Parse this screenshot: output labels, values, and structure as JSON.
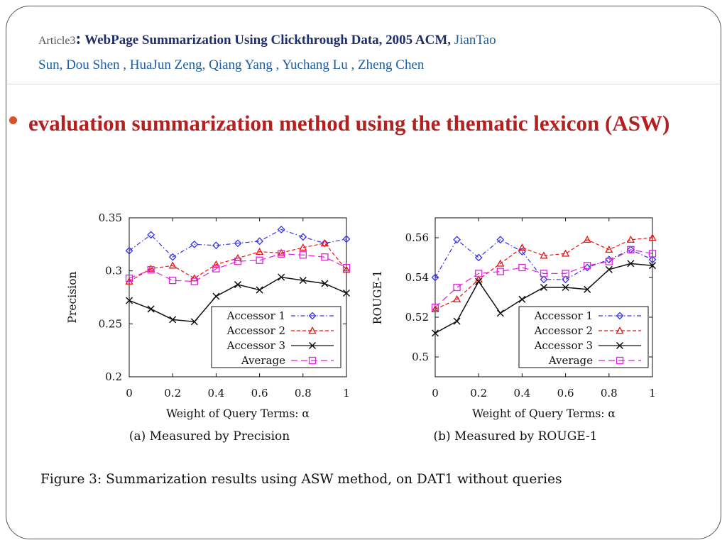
{
  "slide": {
    "article_label": "Article3",
    "colon": ":",
    "title": "WebPage Summarization Using Clickthrough Data, 2005 ACM,",
    "authors_line1": "JianTao",
    "authors_line2": "Sun, Dou Shen , HuaJun Zeng, Qiang Yang , Yuchang Lu , Zheng Chen",
    "bullet": "evaluation summarization method using the thematic lexicon (ASW)"
  },
  "figure_caption": "Figure 3:  Summarization results using ASW method, on DAT1 without queries",
  "colors": {
    "accessor1": "#3333ee",
    "accessor2": "#ee1111",
    "accessor3": "#111111",
    "average": "#dd22dd"
  },
  "chart_data": [
    {
      "type": "line",
      "caption": "(a) Measured by Precision",
      "xlabel": "Weight of Query Terms:  α",
      "ylabel": "Precision",
      "x": [
        0,
        0.1,
        0.2,
        0.3,
        0.4,
        0.5,
        0.6,
        0.7,
        0.8,
        0.9,
        1
      ],
      "xlim": [
        0,
        1
      ],
      "ylim": [
        0.2,
        0.35
      ],
      "xticks": [
        "0",
        "0.2",
        "0.4",
        "0.6",
        "0.8",
        "1"
      ],
      "yticks": [
        "0.2",
        "0.25",
        "0.3",
        "0.35"
      ],
      "legend_position": "lower-right",
      "series": [
        {
          "name": "Accessor 1",
          "marker": "diamond",
          "dash": "6,3,1.5,3",
          "values": [
            0.319,
            0.334,
            0.313,
            0.325,
            0.324,
            0.326,
            0.328,
            0.339,
            0.332,
            0.326,
            0.33
          ]
        },
        {
          "name": "Accessor 2",
          "marker": "triangle",
          "dash": "5,3",
          "values": [
            0.29,
            0.302,
            0.305,
            0.293,
            0.306,
            0.312,
            0.318,
            0.317,
            0.322,
            0.326,
            0.301
          ]
        },
        {
          "name": "Accessor 3",
          "marker": "x",
          "dash": "",
          "values": [
            0.272,
            0.264,
            0.254,
            0.252,
            0.276,
            0.287,
            0.282,
            0.294,
            0.291,
            0.288,
            0.279
          ]
        },
        {
          "name": "Average",
          "marker": "square",
          "dash": "9,5",
          "values": [
            0.293,
            0.301,
            0.291,
            0.29,
            0.302,
            0.309,
            0.31,
            0.316,
            0.315,
            0.313,
            0.303
          ]
        }
      ]
    },
    {
      "type": "line",
      "caption": "(b) Measured by ROUGE-1",
      "xlabel": "Weight of Query Terms:  α",
      "ylabel": "ROUGE-1",
      "x": [
        0,
        0.1,
        0.2,
        0.3,
        0.4,
        0.5,
        0.6,
        0.7,
        0.8,
        0.9,
        1
      ],
      "xlim": [
        0,
        1
      ],
      "ylim": [
        0.49,
        0.57
      ],
      "xticks": [
        "0",
        "0.2",
        "0.4",
        "0.6",
        "0.8",
        "1"
      ],
      "yticks": [
        "0.5",
        "0.52",
        "0.54",
        "0.56"
      ],
      "legend_position": "lower-right",
      "series": [
        {
          "name": "Accessor 1",
          "marker": "diamond",
          "dash": "6,3,1.5,3",
          "values": [
            0.54,
            0.559,
            0.55,
            0.559,
            0.553,
            0.539,
            0.539,
            0.545,
            0.549,
            0.554,
            0.549
          ]
        },
        {
          "name": "Accessor 2",
          "marker": "triangle",
          "dash": "5,3",
          "values": [
            0.524,
            0.529,
            0.539,
            0.547,
            0.555,
            0.551,
            0.552,
            0.559,
            0.554,
            0.559,
            0.56
          ]
        },
        {
          "name": "Accessor 3",
          "marker": "x",
          "dash": "",
          "values": [
            0.512,
            0.518,
            0.538,
            0.522,
            0.529,
            0.535,
            0.535,
            0.534,
            0.544,
            0.547,
            0.546
          ]
        },
        {
          "name": "Average",
          "marker": "square",
          "dash": "9,5",
          "values": [
            0.525,
            0.535,
            0.542,
            0.543,
            0.545,
            0.542,
            0.542,
            0.546,
            0.548,
            0.554,
            0.552
          ]
        }
      ]
    }
  ]
}
